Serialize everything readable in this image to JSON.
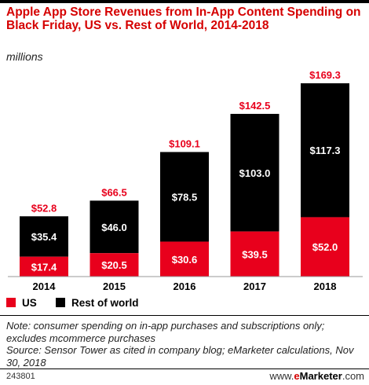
{
  "header": {
    "title": "Apple App Store Revenues from In-App Content Spending on Black Friday, US vs. Rest of World, 2014-2018",
    "subtitle": "millions"
  },
  "legend": [
    {
      "label": "US",
      "color": "#e8001c"
    },
    {
      "label": "Rest of world",
      "color": "#000000"
    }
  ],
  "footnote": {
    "note": "Note: consumer spending on in-app purchases and subscriptions only; excludes mcommerce purchases",
    "source": "Source: Sensor Tower as cited in company blog; eMarketer calculations, Nov 30, 2018"
  },
  "footer": {
    "chart_id": "243801",
    "brand_prefix": "www.",
    "brand_e": "e",
    "brand_name": "Marketer",
    "brand_suffix": ".com"
  },
  "chart_data": {
    "type": "bar",
    "stacked": true,
    "categories": [
      "2014",
      "2015",
      "2016",
      "2017",
      "2018"
    ],
    "series": [
      {
        "name": "US",
        "color": "#e8001c",
        "values": [
          17.4,
          20.5,
          30.6,
          39.5,
          52.0
        ],
        "labels": [
          "$17.4",
          "$20.5",
          "$30.6",
          "$39.5",
          "$52.0"
        ]
      },
      {
        "name": "Rest of world",
        "color": "#000000",
        "values": [
          35.4,
          46.0,
          78.5,
          103.0,
          117.3
        ],
        "labels": [
          "$35.4",
          "$46.0",
          "$78.5",
          "$103.0",
          "$117.3"
        ]
      }
    ],
    "totals": [
      52.8,
      66.5,
      109.1,
      142.5,
      169.3
    ],
    "total_labels": [
      "$52.8",
      "$66.5",
      "$109.1",
      "$142.5",
      "$169.3"
    ],
    "total_label_color": "#e8001c",
    "ylim": [
      0,
      169.3
    ],
    "grid": false,
    "legend_position": "bottom-left"
  }
}
